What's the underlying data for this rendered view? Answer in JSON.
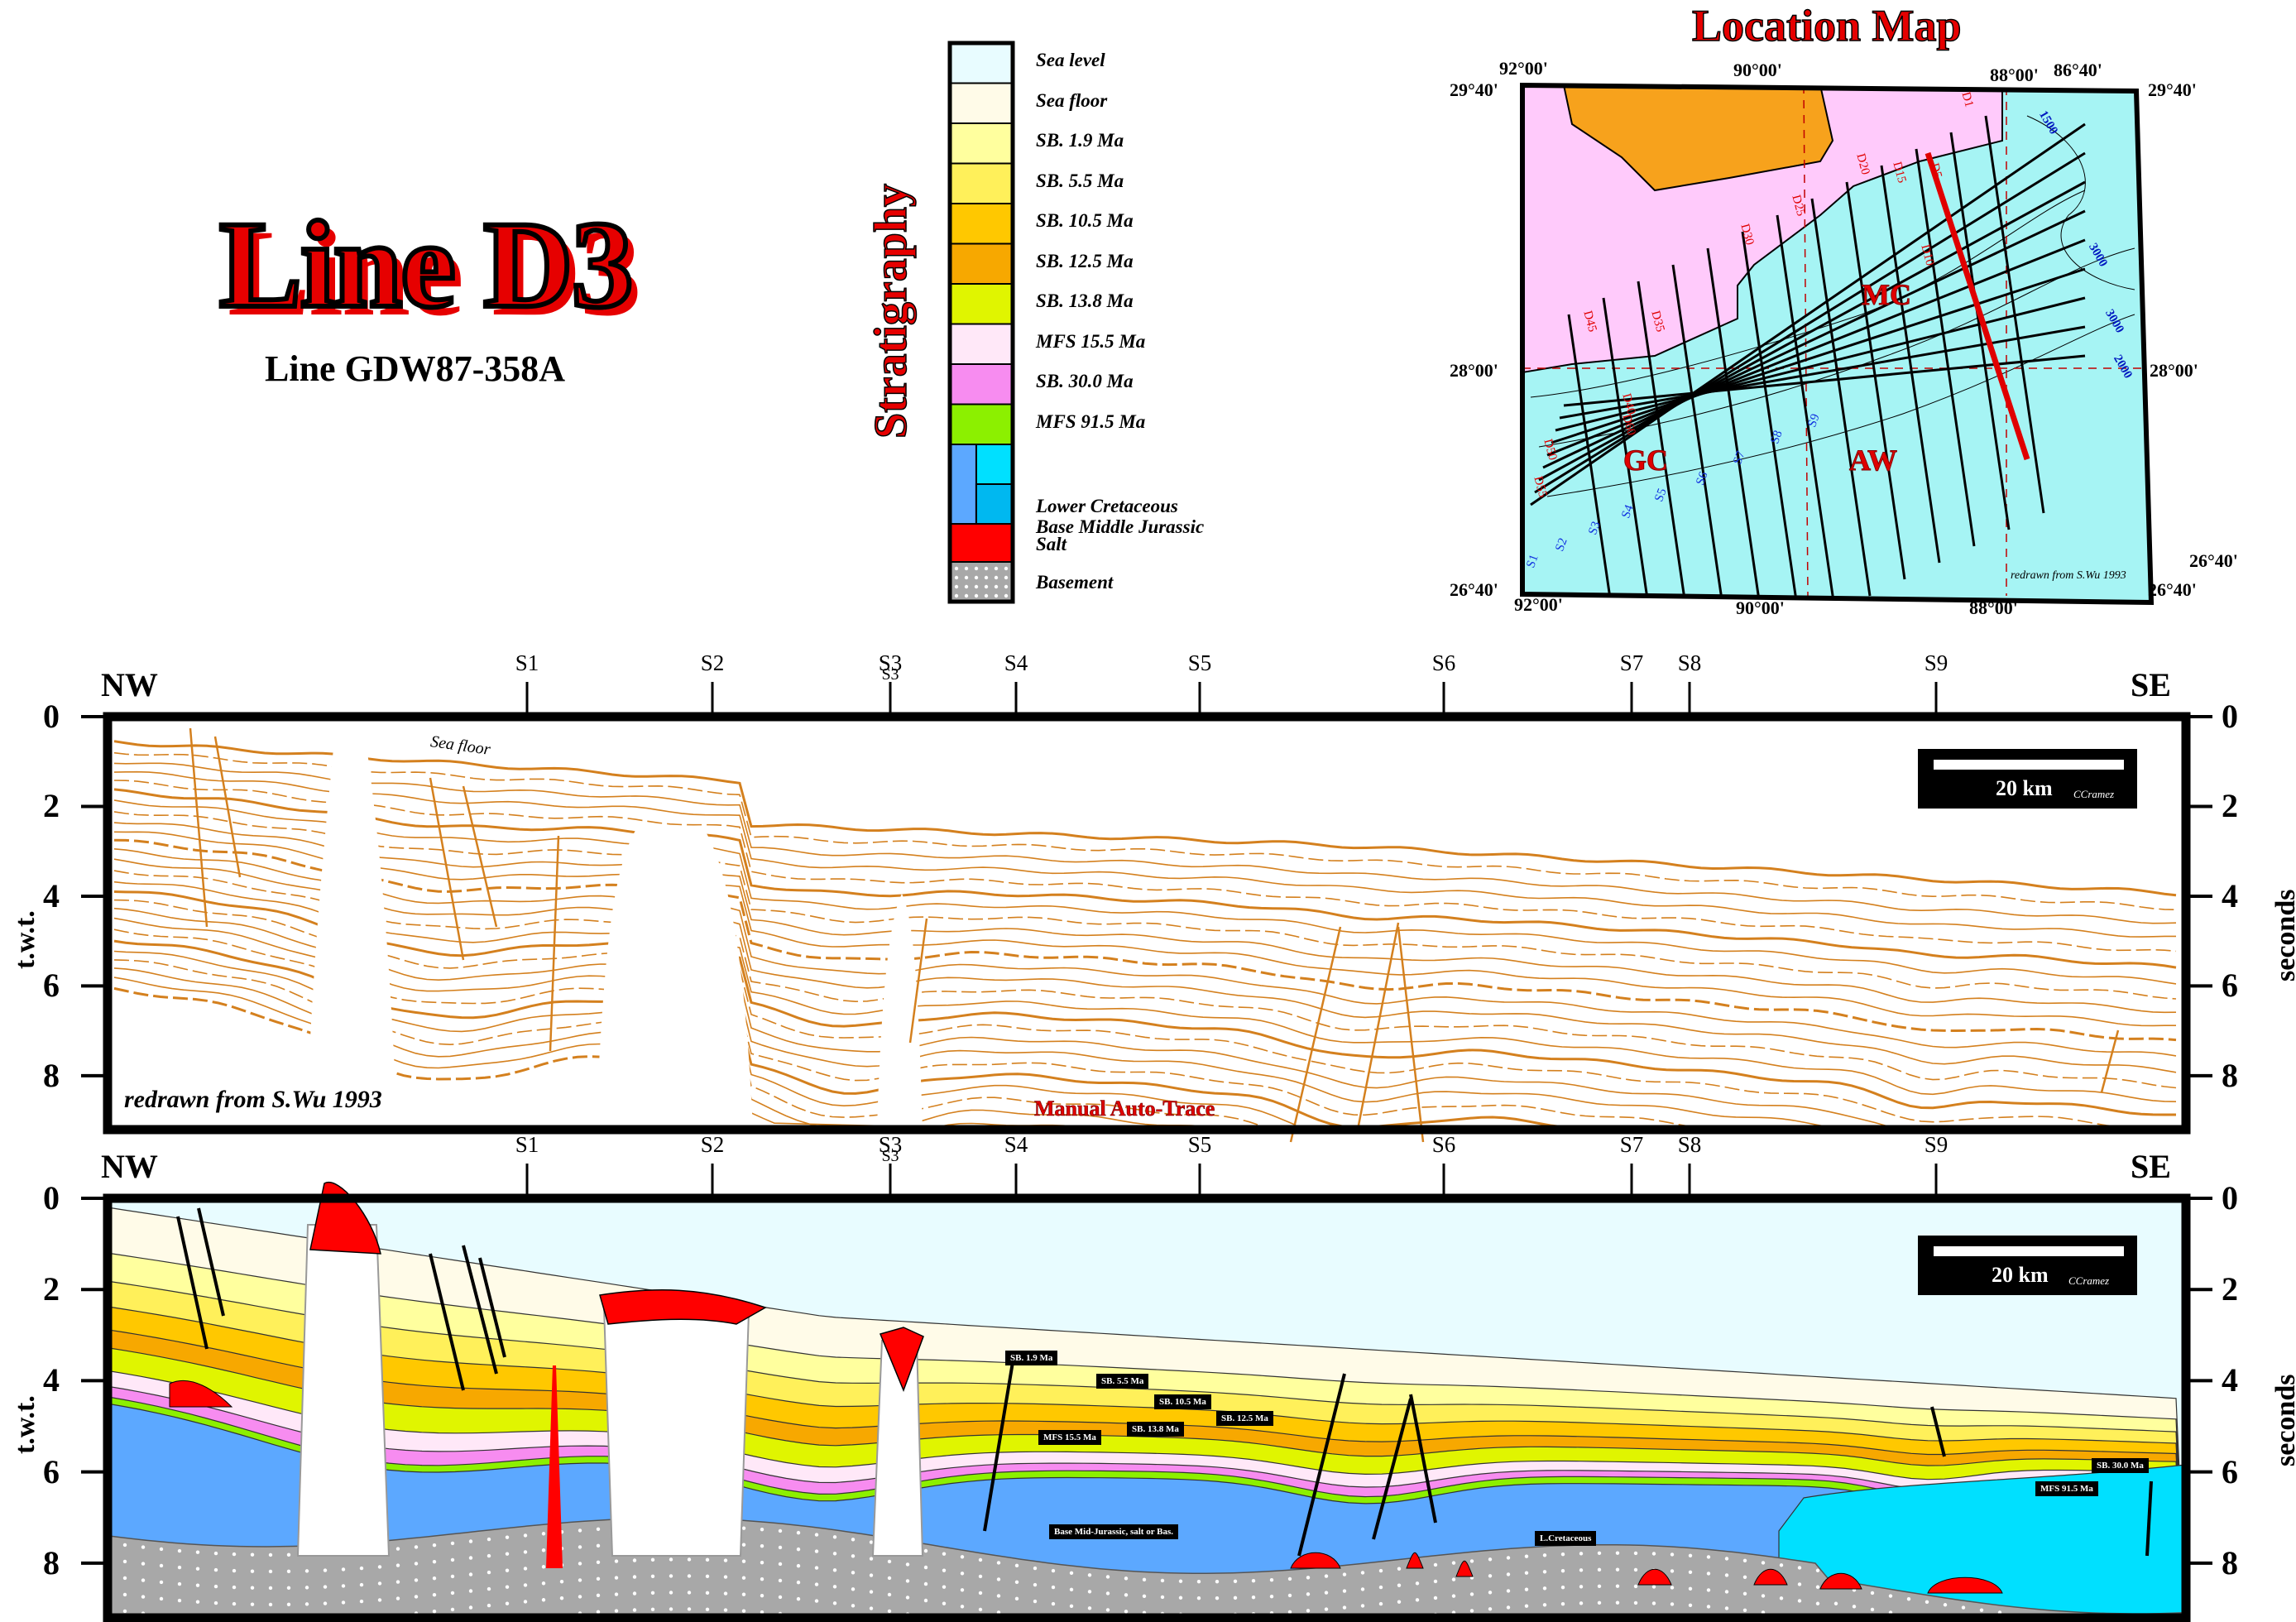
{
  "title": "Line D3",
  "subtitle": "Line GDW87-358A",
  "legend": {
    "heading": "Stratigraphy",
    "items": [
      {
        "label": "Sea level",
        "color": "#e8fcff"
      },
      {
        "label": "Sea floor",
        "color": "#fffbe8"
      },
      {
        "label": "SB. 1.9 Ma",
        "color": "#ffff9e"
      },
      {
        "label": "SB. 5.5 Ma",
        "color": "#fff05a"
      },
      {
        "label": "SB. 10.5 Ma",
        "color": "#ffc800"
      },
      {
        "label": "SB. 12.5 Ma",
        "color": "#f7a800"
      },
      {
        "label": "SB. 13.8 Ma",
        "color": "#e0f500"
      },
      {
        "label": "MFS 15.5 Ma",
        "color": "#ffe8f8"
      },
      {
        "label": "SB. 30.0 Ma",
        "color": "#f78cf0"
      },
      {
        "label": "MFS 91.5 Ma",
        "color": "#8cf000"
      },
      {
        "label": "Lower Cretaceous",
        "color": "#5ca8ff"
      },
      {
        "label": "Base Middle Jurassic",
        "color": "#00e0ff"
      },
      {
        "label": "Salt",
        "color": "#ff0000"
      },
      {
        "label": "Basement",
        "color": "#a8a8a8"
      }
    ]
  },
  "map": {
    "heading": "Location Map",
    "corner_labels": {
      "top_left_lon": "92°00'",
      "top_mid_lon": "90°00'",
      "top_right_lon2": "88°00'",
      "top_right_lon": "86°40'",
      "top_left_lat": "29°40'",
      "top_right_lat": "29°40'",
      "mid_left_lat": "28°00'",
      "mid_right_lat": "28°00'",
      "bot_left_lat": "26°40'",
      "bot_right_lat": "26°40'",
      "right_lat_upper": "26°40'",
      "bot_left_lon": "92°00'",
      "bot_mid_lon": "90°00'",
      "bot_right_lon": "88°00'"
    },
    "regions": [
      "GC",
      "MC",
      "AW"
    ],
    "credit": "redrawn from S.Wu 1993",
    "contours": [
      "1500",
      "3000",
      "3000",
      "2000"
    ],
    "dip_lines": [
      "D1",
      "D5",
      "D10",
      "D15",
      "D20",
      "D25",
      "D30",
      "D35",
      "D40",
      "D45",
      "D50",
      "D55",
      "D60"
    ],
    "strike_lines": [
      "S1",
      "S2",
      "S3",
      "S4",
      "S5",
      "S6",
      "S7",
      "S8",
      "S9"
    ]
  },
  "section_common": {
    "left_label": "NW",
    "right_label": "SE",
    "y_ticks": [
      "0",
      "2",
      "4",
      "6",
      "8"
    ],
    "y_title_left": "t.w.t.",
    "y_title_right": "seconds",
    "scale_label": "20 km",
    "scale_credit": "CCramez",
    "strike_ties": [
      "S1",
      "S2",
      "S3",
      "S4",
      "S5",
      "S6",
      "S7",
      "S8",
      "S9"
    ],
    "strike_tie_extra": "S3"
  },
  "section_top": {
    "sea_floor_label": "Sea floor",
    "credit": "redrawn from S.Wu 1993",
    "method": "Manual Auto-Trace"
  },
  "section_bottom": {
    "horizon_labels": [
      "SB. 1.9 Ma",
      "SB. 5.5 Ma",
      "SB. 10.5 Ma",
      "SB. 13.8 Ma",
      "SB. 12.5 Ma",
      "MFS 15.5 Ma",
      "Base Mid-Jurassic, salt or Bas.",
      "L.Cretaceous",
      "SB. 30.0 Ma",
      "MFS 91.5 Ma"
    ]
  }
}
